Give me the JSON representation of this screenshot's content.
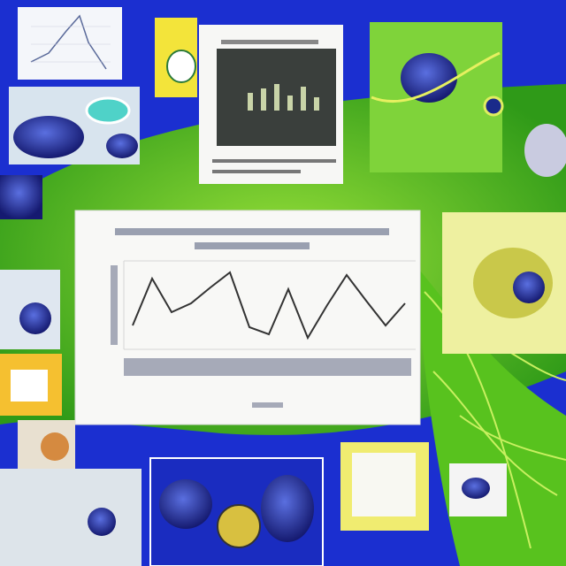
{
  "chart_data": {
    "type": "line",
    "values": [
      2.7,
      8,
      4.2,
      5.2,
      7,
      8.7,
      2.5,
      1.7,
      6.8,
      1.3,
      5,
      8.4,
      5.5,
      2.7,
      5.2
    ],
    "ylim": [
      0,
      10
    ],
    "color": "#333333"
  }
}
